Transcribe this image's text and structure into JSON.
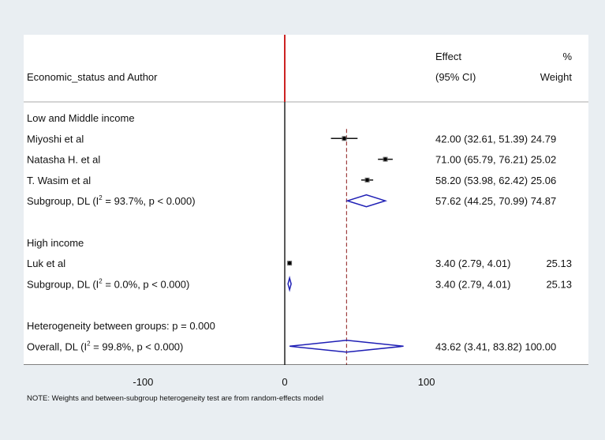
{
  "header": {
    "left_label": "Economic_status and Author",
    "effect_label": "Effect",
    "ci_label": "(95% CI)",
    "pct_label": "%",
    "weight_label": "Weight"
  },
  "note": "NOTE: Weights and between-subgroup heterogeneity test are from random-effects model",
  "colors": {
    "null_line": "#cc2222",
    "overall_line": "#8b1a1a",
    "diamond": "#1f1fb5",
    "axis": "#000000"
  },
  "chart_data": {
    "type": "forest",
    "xlim": [
      -180,
      180
    ],
    "x_ticks": [
      -100,
      0,
      100
    ],
    "x_tick_labels": [
      "-100",
      "0",
      "100"
    ],
    "null_value": 0,
    "overall_effect": 43.62,
    "rows": [
      {
        "kind": "group",
        "label": "Low and Middle income"
      },
      {
        "kind": "study",
        "label": "Miyoshi et al",
        "effect": 42.0,
        "lo": 32.61,
        "hi": 51.39,
        "weight": 24.79,
        "text": "42.00 (32.61, 51.39) 24.79"
      },
      {
        "kind": "study",
        "label": "Natasha H. et al",
        "effect": 71.0,
        "lo": 65.79,
        "hi": 76.21,
        "weight": 25.02,
        "text": "71.00 (65.79, 76.21) 25.02"
      },
      {
        "kind": "study",
        "label": "T. Wasim et al",
        "effect": 58.2,
        "lo": 53.98,
        "hi": 62.42,
        "weight": 25.06,
        "text": "58.20 (53.98, 62.42) 25.06"
      },
      {
        "kind": "subgroup",
        "prefix": "Subgroup, DL (I",
        "sup": "2",
        "suffix": " = 93.7%, p < 0.000)",
        "effect": 57.62,
        "lo": 44.25,
        "hi": 70.99,
        "weight": 74.87,
        "text": "57.62 (44.25, 70.99) 74.87"
      },
      {
        "kind": "blank"
      },
      {
        "kind": "group",
        "label": "High income"
      },
      {
        "kind": "study",
        "label": "Luk et al",
        "effect": 3.4,
        "lo": 2.79,
        "hi": 4.01,
        "weight": 25.13,
        "est": "3.40 (2.79, 4.01)",
        "wt": "25.13"
      },
      {
        "kind": "subgroup",
        "prefix": "Subgroup, DL (I",
        "sup": "2",
        "suffix": " = 0.0%, p < 0.000)",
        "effect": 3.4,
        "lo": 2.79,
        "hi": 4.01,
        "weight": 25.13,
        "est": "3.40 (2.79, 4.01)",
        "wt": "25.13"
      },
      {
        "kind": "blank"
      },
      {
        "kind": "group",
        "label": "Heterogeneity between groups: p = 0.000"
      },
      {
        "kind": "overall",
        "prefix": "Overall, DL (I",
        "sup": "2",
        "suffix": " = 99.8%, p < 0.000)",
        "effect": 43.62,
        "lo": 3.41,
        "hi": 83.82,
        "weight": 100.0,
        "text": "43.62 (3.41, 83.82) 100.00"
      }
    ]
  }
}
